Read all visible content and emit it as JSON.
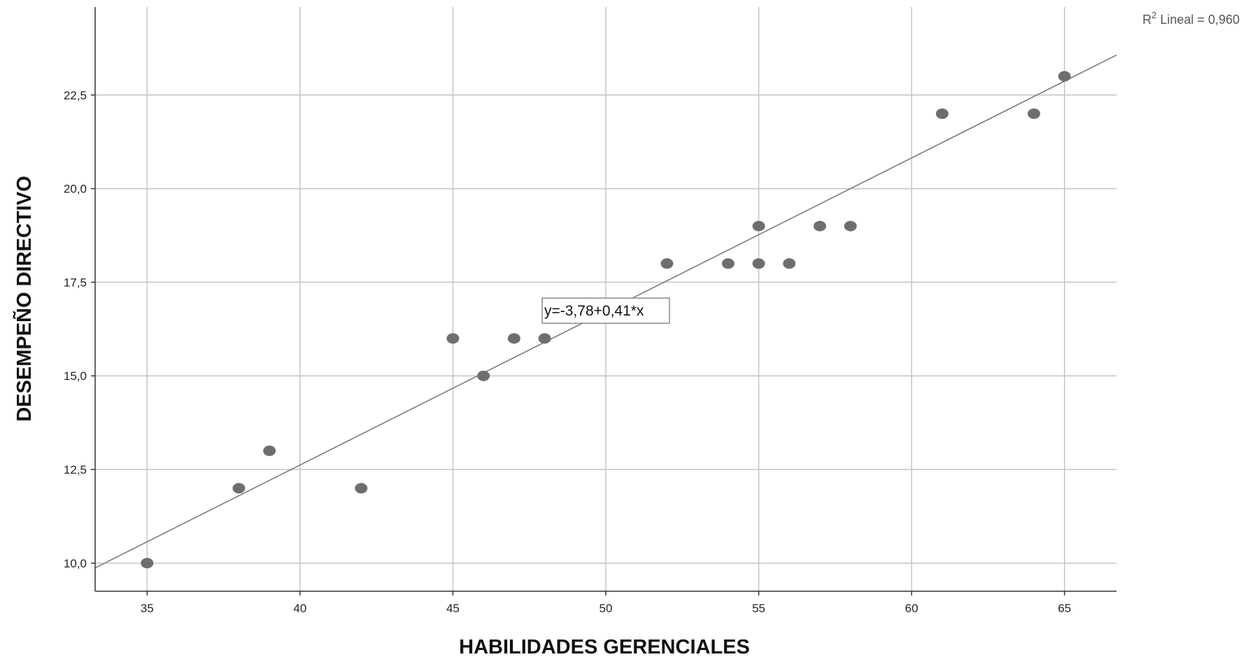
{
  "chart_data": {
    "type": "scatter",
    "title": "",
    "xlabel": "HABILIDADES GERENCIALES",
    "ylabel": "DESEMPEÑO DIRECTIVO",
    "xlim": [
      33.3,
      66.7
    ],
    "ylim": [
      9.25,
      24.85
    ],
    "x_ticks": [
      35,
      40,
      45,
      50,
      55,
      60,
      65
    ],
    "x_tick_labels": [
      "35",
      "40",
      "45",
      "50",
      "55",
      "60",
      "65"
    ],
    "y_ticks": [
      10.0,
      12.5,
      15.0,
      17.5,
      20.0,
      22.5
    ],
    "y_tick_labels": [
      "10,0",
      "12,5",
      "15,0",
      "17,5",
      "20,0",
      "22,5"
    ],
    "grid": true,
    "series": [
      {
        "x": [
          35,
          38,
          39,
          42,
          45,
          46,
          47,
          48,
          52,
          54,
          55,
          55,
          56,
          57,
          58,
          61,
          64,
          65
        ],
        "y": [
          10,
          12,
          13,
          12,
          16,
          15,
          16,
          16,
          18,
          18,
          19,
          18,
          18,
          19,
          19,
          22,
          22,
          23
        ]
      }
    ],
    "fit_line": {
      "intercept": -3.78,
      "slope": 0.41,
      "equation_label": "y=-3,78+0,41*x",
      "r2_prefix": "R",
      "r2_sup": "2",
      "r2_text": " Lineal = 0,960"
    }
  }
}
